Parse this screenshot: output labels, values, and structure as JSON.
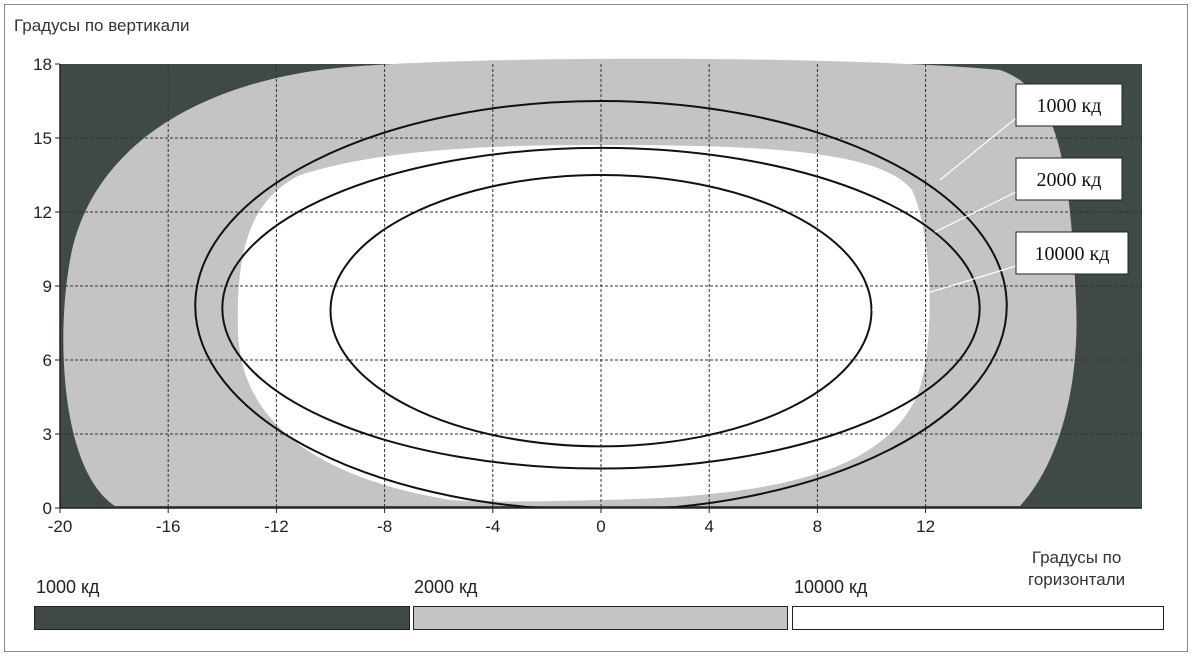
{
  "chart_data": {
    "type": "contour",
    "ylabel": "Градусы по вертикали",
    "xlabel_line1": "Градусы по",
    "xlabel_line2": "горизонтали",
    "xlim": [
      -20,
      20
    ],
    "ylim": [
      0,
      18
    ],
    "x_ticks": [
      "-20",
      "-16",
      "-12",
      "-8",
      "-4",
      "0",
      "4",
      "8",
      "12"
    ],
    "y_ticks": [
      "0",
      "3",
      "6",
      "9",
      "12",
      "15",
      "18"
    ],
    "grid": true,
    "colors": {
      "level_1000": "#3f4a47",
      "level_2000": "#c4c4c4",
      "level_10000": "#ffffff"
    },
    "contours": [
      {
        "label": "1000 кд",
        "center": [
          0,
          8.2
        ],
        "rx": 15.0,
        "ry": 8.3
      },
      {
        "label": "2000 кд",
        "center": [
          0,
          8.1
        ],
        "rx": 14.0,
        "ry": 6.5
      },
      {
        "label": "10000 кд",
        "center": [
          0,
          8.0
        ],
        "rx": 10.0,
        "ry": 5.5
      }
    ],
    "callouts": [
      "1000 кд",
      "2000 кд",
      "10000 кд"
    ],
    "legend": [
      {
        "label": "1000 кд",
        "color": "#3f4a47"
      },
      {
        "label": "2000 кд",
        "color": "#c4c4c4"
      },
      {
        "label": "10000 кд",
        "color": "#ffffff"
      }
    ]
  }
}
